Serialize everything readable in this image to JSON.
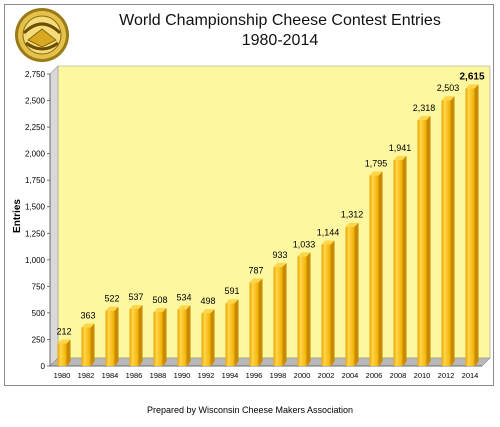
{
  "title_line1": "World Championship Cheese Contest Entries",
  "title_line2": "1980-2014",
  "logo_text": "WORLD CHAMPIONSHIP CHEESE CONTEST",
  "credit": "Prepared by Wisconsin Cheese Makers Association",
  "colors": {
    "plot_bg": "#fdf7a0",
    "bar": "#f5b800",
    "bar_light": "#ffd54a",
    "bar_dark": "#c88a00",
    "floor": "#b9b9b9"
  },
  "chart_data": {
    "type": "bar",
    "categories": [
      "1980",
      "1982",
      "1984",
      "1986",
      "1988",
      "1990",
      "1992",
      "1994",
      "1996",
      "1998",
      "2000",
      "2002",
      "2004",
      "2006",
      "2008",
      "2010",
      "2012",
      "2014"
    ],
    "values": [
      212,
      363,
      522,
      537,
      508,
      534,
      498,
      591,
      787,
      933,
      1033,
      1144,
      1312,
      1795,
      1941,
      2318,
      2503,
      2615
    ],
    "value_labels": [
      "212",
      "363",
      "522",
      "537",
      "508",
      "534",
      "498",
      "591",
      "787",
      "933",
      "1,033",
      "1,144",
      "1,312",
      "1,795",
      "1,941",
      "2,318",
      "2,503",
      "2,615"
    ],
    "ylabel": "Entries",
    "ylim": [
      0,
      2750
    ],
    "yticks": [
      0,
      250,
      500,
      750,
      1000,
      1250,
      1500,
      1750,
      2000,
      2250,
      2500,
      2750
    ],
    "ytick_labels": [
      "0",
      "250",
      "500",
      "750",
      "1,000",
      "1,250",
      "1,500",
      "1,750",
      "2,000",
      "2,250",
      "2,500",
      "2,750"
    ],
    "grid": false,
    "legend": "none"
  }
}
